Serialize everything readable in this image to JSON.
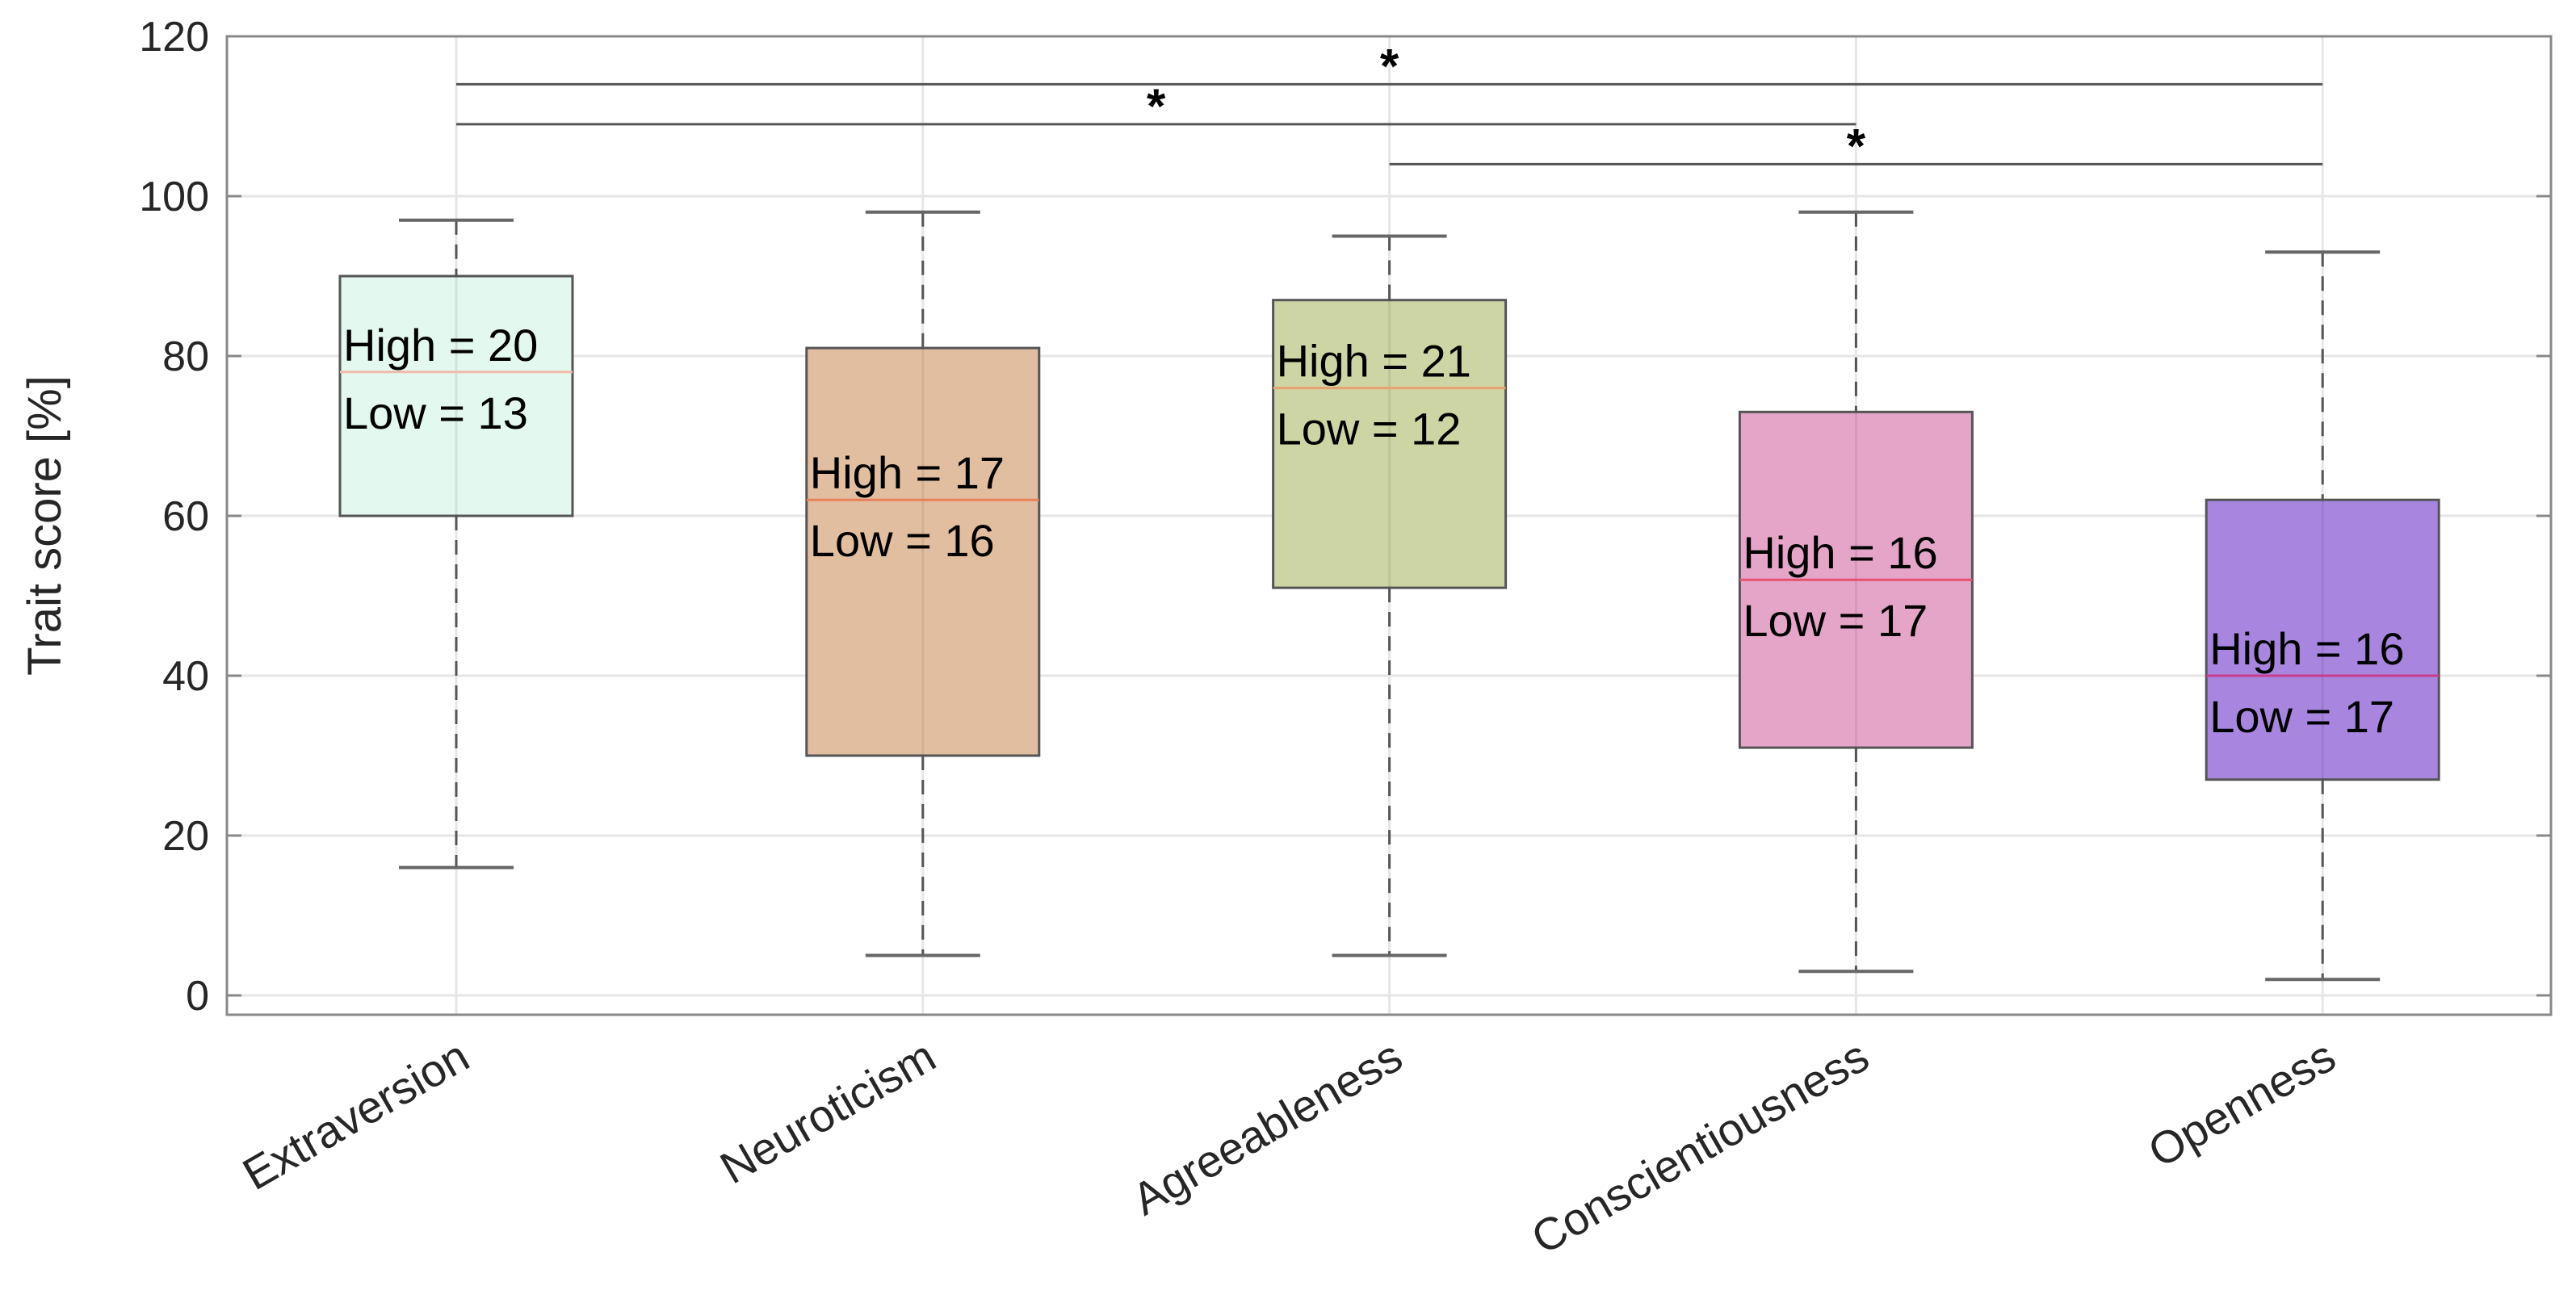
{
  "chart_data": {
    "type": "box",
    "title": "",
    "xlabel": "",
    "ylabel": "Trait score [%]",
    "ylim": [
      -3,
      120
    ],
    "yticks": [
      0,
      20,
      40,
      60,
      80,
      100,
      120
    ],
    "grid": true,
    "categories": [
      "Extraversion",
      "Neuroticism",
      "Agreeableness",
      "Conscientiousness",
      "Openness"
    ],
    "boxes": [
      {
        "category": "Extraversion",
        "whisker_low": 16,
        "q1": 60,
        "median": 78,
        "q3": 90,
        "whisker_high": 97,
        "color": "#e3f8ee",
        "median_color": "#f2b8a8",
        "annotation_high": "High = 20",
        "annotation_low": "Low = 13"
      },
      {
        "category": "Neuroticism",
        "whisker_low": 5,
        "q1": 30,
        "median": 62,
        "q3": 81,
        "whisker_high": 98,
        "color": "#e2bea0",
        "median_color": "#e8805a",
        "annotation_high": "High = 17",
        "annotation_low": "Low = 16"
      },
      {
        "category": "Agreeableness",
        "whisker_low": 5,
        "q1": 51,
        "median": 76,
        "q3": 87,
        "whisker_high": 95,
        "color": "#ccd5a3",
        "median_color": "#e8a070",
        "annotation_high": "High = 21",
        "annotation_low": "Low = 12"
      },
      {
        "category": "Conscientiousness",
        "whisker_low": 3,
        "q1": 31,
        "median": 52,
        "q3": 73,
        "whisker_high": 98,
        "color": "#e5a5c8",
        "median_color": "#e8506e",
        "annotation_high": "High = 16",
        "annotation_low": "Low = 17"
      },
      {
        "category": "Openness",
        "whisker_low": 2,
        "q1": 27,
        "median": 40,
        "q3": 62,
        "whisker_high": 93,
        "color": "#a886e0",
        "median_color": "#c83c8c",
        "annotation_high": "High = 16",
        "annotation_low": "Low = 17"
      }
    ],
    "significance": [
      {
        "from": "Extraversion",
        "to": "Openness",
        "level": 114,
        "label": "*"
      },
      {
        "from": "Extraversion",
        "to": "Conscientiousness",
        "level": 109,
        "label": "*"
      },
      {
        "from": "Agreeableness",
        "to": "Openness",
        "level": 104,
        "label": "*"
      }
    ]
  }
}
